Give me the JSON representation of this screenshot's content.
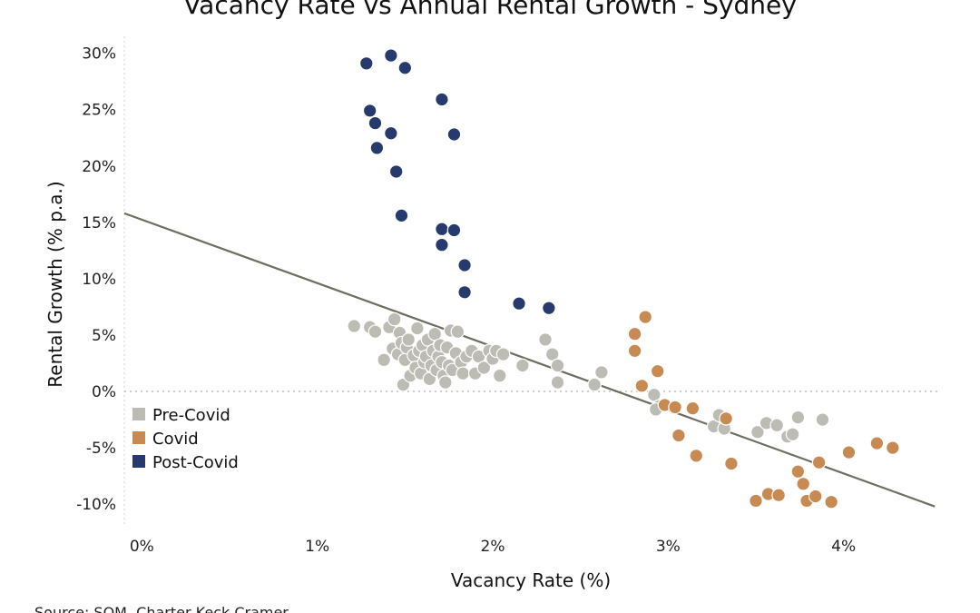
{
  "chart_data": {
    "type": "scatter",
    "title": "Vacancy Rate vs Annual Rental Growth - Sydney",
    "xlabel": "Vacancy Rate (%)",
    "ylabel": "Rental Growth (% p.a.)",
    "source": "Source: SQM, Charter Keck Cramer",
    "xlim": [
      -0.1,
      4.55
    ],
    "ylim": [
      -12,
      31.5
    ],
    "x_ticks": [
      {
        "value": 0,
        "label": "0%"
      },
      {
        "value": 1,
        "label": "1%"
      },
      {
        "value": 2,
        "label": "2%"
      },
      {
        "value": 3,
        "label": "3%"
      },
      {
        "value": 4,
        "label": "4%"
      }
    ],
    "y_ticks": [
      {
        "value": 30,
        "label": "30%"
      },
      {
        "value": 25,
        "label": "25%"
      },
      {
        "value": 20,
        "label": "20%"
      },
      {
        "value": 15,
        "label": "15%"
      },
      {
        "value": 10,
        "label": "10%"
      },
      {
        "value": 5,
        "label": "5%"
      },
      {
        "value": 0,
        "label": "0%"
      },
      {
        "value": -5,
        "label": "-5%"
      },
      {
        "value": -10,
        "label": "-10%"
      }
    ],
    "zero_line": true,
    "legend_position": "bottom-left",
    "trendline": {
      "x": [
        -0.1,
        4.52
      ],
      "y": [
        15.8,
        -10.2
      ],
      "color": "#6e6e60"
    },
    "series": [
      {
        "name": "Pre-Covid",
        "color": "#bcbcb4",
        "points": [
          [
            1.21,
            5.8
          ],
          [
            1.3,
            5.7
          ],
          [
            1.33,
            5.3
          ],
          [
            1.38,
            2.8
          ],
          [
            1.41,
            5.7
          ],
          [
            1.44,
            6.4
          ],
          [
            1.43,
            3.8
          ],
          [
            1.46,
            3.3
          ],
          [
            1.47,
            5.2
          ],
          [
            1.48,
            4.3
          ],
          [
            1.49,
            0.6
          ],
          [
            1.5,
            2.8
          ],
          [
            1.51,
            3.9
          ],
          [
            1.52,
            4.6
          ],
          [
            1.53,
            1.4
          ],
          [
            1.55,
            3.2
          ],
          [
            1.56,
            2.1
          ],
          [
            1.57,
            5.6
          ],
          [
            1.58,
            3.6
          ],
          [
            1.59,
            1.6
          ],
          [
            1.6,
            4.1
          ],
          [
            1.61,
            2.6
          ],
          [
            1.62,
            3.1
          ],
          [
            1.63,
            4.6
          ],
          [
            1.64,
            1.1
          ],
          [
            1.65,
            2.3
          ],
          [
            1.66,
            3.6
          ],
          [
            1.67,
            5.1
          ],
          [
            1.68,
            1.9
          ],
          [
            1.69,
            3.1
          ],
          [
            1.7,
            4.1
          ],
          [
            1.71,
            2.6
          ],
          [
            1.72,
            1.4
          ],
          [
            1.73,
            0.8
          ],
          [
            1.74,
            3.9
          ],
          [
            1.75,
            2.3
          ],
          [
            1.76,
            5.4
          ],
          [
            1.77,
            1.9
          ],
          [
            1.79,
            3.4
          ],
          [
            1.8,
            5.3
          ],
          [
            1.82,
            2.6
          ],
          [
            1.83,
            1.6
          ],
          [
            1.85,
            3.1
          ],
          [
            1.88,
            3.6
          ],
          [
            1.9,
            1.6
          ],
          [
            1.92,
            3.1
          ],
          [
            1.95,
            2.1
          ],
          [
            1.98,
            3.6
          ],
          [
            2.0,
            2.9
          ],
          [
            2.02,
            3.6
          ],
          [
            2.04,
            1.4
          ],
          [
            2.06,
            3.3
          ],
          [
            2.17,
            2.3
          ],
          [
            2.3,
            4.6
          ],
          [
            2.34,
            3.3
          ],
          [
            2.37,
            2.3
          ],
          [
            2.37,
            0.8
          ],
          [
            2.58,
            0.6
          ],
          [
            2.62,
            1.7
          ],
          [
            2.92,
            -0.3
          ],
          [
            2.95,
            -1.3
          ],
          [
            2.93,
            -1.6
          ],
          [
            3.26,
            -3.1
          ],
          [
            3.29,
            -2.1
          ],
          [
            3.32,
            -3.3
          ],
          [
            3.51,
            -3.6
          ],
          [
            3.56,
            -2.8
          ],
          [
            3.62,
            -3.0
          ],
          [
            3.68,
            -4.0
          ],
          [
            3.71,
            -3.8
          ],
          [
            3.74,
            -2.3
          ],
          [
            3.88,
            -2.5
          ]
        ]
      },
      {
        "name": "Covid",
        "color": "#c88a53",
        "points": [
          [
            2.81,
            5.1
          ],
          [
            2.81,
            3.6
          ],
          [
            2.87,
            6.6
          ],
          [
            2.85,
            0.5
          ],
          [
            2.94,
            1.8
          ],
          [
            2.98,
            -1.2
          ],
          [
            3.04,
            -1.4
          ],
          [
            3.06,
            -3.9
          ],
          [
            3.14,
            -1.5
          ],
          [
            3.16,
            -5.7
          ],
          [
            3.33,
            -2.4
          ],
          [
            3.36,
            -6.4
          ],
          [
            3.5,
            -9.7
          ],
          [
            3.57,
            -9.1
          ],
          [
            3.63,
            -9.2
          ],
          [
            3.74,
            -7.1
          ],
          [
            3.77,
            -8.2
          ],
          [
            3.79,
            -9.7
          ],
          [
            3.84,
            -9.3
          ],
          [
            3.86,
            -6.3
          ],
          [
            3.93,
            -9.8
          ],
          [
            4.03,
            -5.4
          ],
          [
            4.19,
            -4.6
          ],
          [
            4.28,
            -5.0
          ]
        ]
      },
      {
        "name": "Post-Covid",
        "color": "#263a6e",
        "points": [
          [
            1.28,
            29.1
          ],
          [
            1.42,
            29.8
          ],
          [
            1.5,
            28.7
          ],
          [
            1.3,
            24.9
          ],
          [
            1.33,
            23.8
          ],
          [
            1.42,
            22.9
          ],
          [
            1.71,
            25.9
          ],
          [
            1.78,
            22.8
          ],
          [
            1.34,
            21.6
          ],
          [
            1.45,
            19.5
          ],
          [
            1.48,
            15.6
          ],
          [
            1.71,
            14.4
          ],
          [
            1.78,
            14.3
          ],
          [
            1.71,
            13.0
          ],
          [
            1.84,
            11.2
          ],
          [
            1.84,
            8.8
          ],
          [
            2.15,
            7.8
          ],
          [
            2.32,
            7.4
          ]
        ]
      }
    ]
  }
}
